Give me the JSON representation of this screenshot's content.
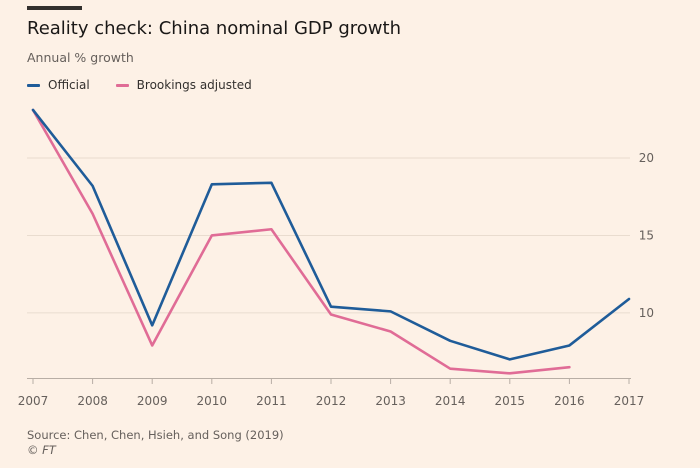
{
  "chart_data": {
    "type": "line",
    "title": "Reality check: China nominal GDP growth",
    "subtitle": "Annual % growth",
    "xlabel": "",
    "ylabel": "Annual % growth",
    "x": [
      "2007",
      "2008",
      "2009",
      "2010",
      "2011",
      "2012",
      "2013",
      "2014",
      "2015",
      "2016",
      "2017"
    ],
    "series": [
      {
        "name": "Official",
        "color": "#1f5c99",
        "values": [
          23.1,
          18.2,
          9.2,
          18.3,
          18.4,
          10.4,
          10.1,
          8.2,
          7.0,
          7.9,
          10.9
        ]
      },
      {
        "name": "Brookings adjusted",
        "color": "#e06c96",
        "values": [
          23.1,
          16.4,
          7.9,
          15.0,
          15.4,
          9.9,
          8.8,
          6.4,
          6.1,
          6.5,
          null
        ]
      }
    ],
    "ylim": [
      5.8,
      24
    ],
    "yticks": [
      "10",
      "15",
      "20"
    ],
    "grid": true,
    "legend": "top-left"
  },
  "source": "Source: Chen, Chen, Hsieh, and Song (2019)",
  "credit": "© FT"
}
